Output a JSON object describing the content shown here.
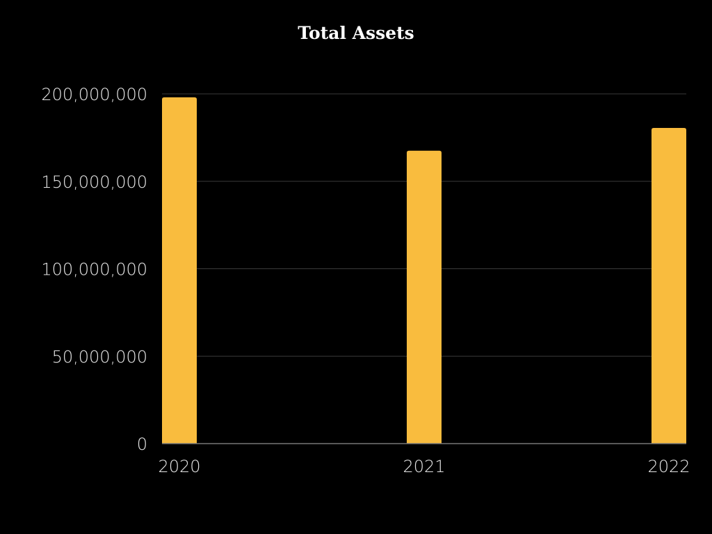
{
  "chart_data": {
    "type": "bar",
    "title": "Total Assets",
    "xlabel": "",
    "ylabel": "",
    "categories": [
      "2020",
      "2021",
      "2022"
    ],
    "values": [
      198000000,
      167500000,
      180500000
    ],
    "ylim": [
      0,
      200000000
    ],
    "yticks": [
      0,
      50000000,
      100000000,
      150000000,
      200000000
    ],
    "ytick_labels": [
      "0",
      "50,000,000",
      "100,000,000",
      "150,000,000",
      "200,000,000"
    ],
    "grid": true,
    "legend": "none",
    "colors": {
      "bar": "#F9BC3E",
      "background": "#000000",
      "grid": "#3a3a3a",
      "axis": "#777777",
      "text": "#e6e6e6",
      "title": "#ffffff"
    }
  }
}
